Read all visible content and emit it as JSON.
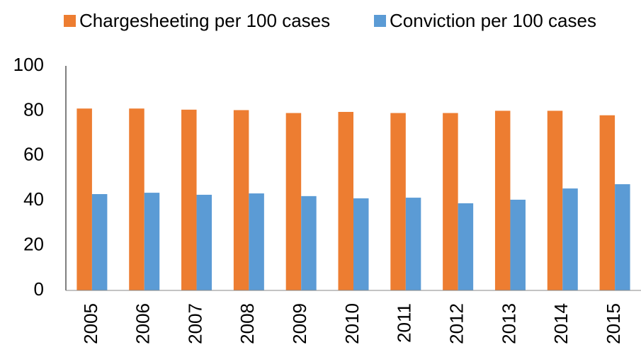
{
  "chart_data": {
    "type": "bar",
    "categories": [
      "2005",
      "2006",
      "2007",
      "2008",
      "2009",
      "2010",
      "2011",
      "2012",
      "2013",
      "2014",
      "2015"
    ],
    "series": [
      {
        "name": "Chargesheeting per 100 cases",
        "color": "#ed7d31",
        "values": [
          81,
          81,
          80.5,
          80.3,
          79,
          79.5,
          79,
          79,
          80,
          80,
          78
        ]
      },
      {
        "name": "Conviction per 100 cases",
        "color": "#5b9bd5",
        "values": [
          42.9,
          43.5,
          42.6,
          43.2,
          42,
          41,
          41.3,
          38.8,
          40.4,
          45.4,
          47.3
        ]
      }
    ],
    "ylim": [
      0,
      100
    ],
    "yticks": [
      0,
      20,
      40,
      60,
      80,
      100
    ],
    "grid": false,
    "legend": "top"
  }
}
